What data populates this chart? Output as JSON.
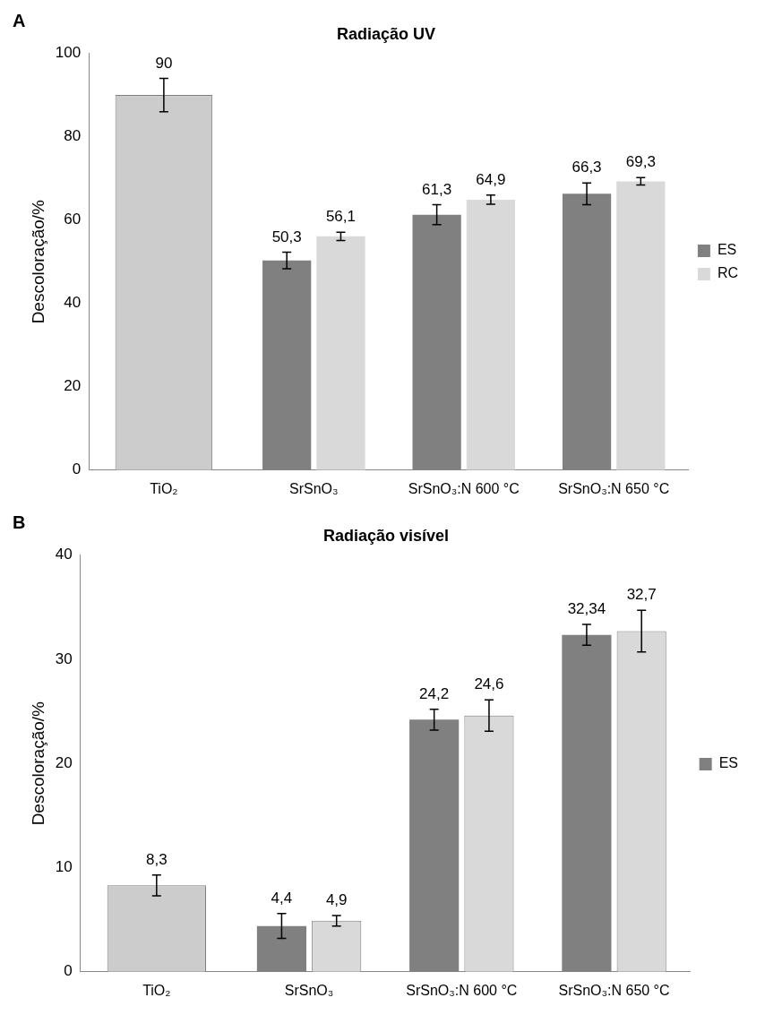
{
  "chart_data": [
    {
      "type": "bar",
      "title": "Radiação UV",
      "ylabel": "Descoloração/%",
      "annotations": [
        "A"
      ],
      "categories": [
        "TiO₂",
        "SrSnO₃",
        "SrSnO₃:N 600 °C",
        "SrSnO₃:N 650 °C"
      ],
      "ylim": [
        0,
        100
      ],
      "yticks": [
        0,
        20,
        40,
        60,
        80,
        100
      ],
      "grid": false,
      "legend": "right",
      "series": [
        {
          "color": "#cccccc",
          "values": [
            90,
            null,
            null,
            null
          ],
          "errors": [
            4,
            null,
            null,
            null
          ],
          "value_labels": [
            "90",
            null,
            null,
            null
          ]
        },
        {
          "name": "ES",
          "color": "#808080",
          "values": [
            null,
            50.3,
            61.3,
            66.3
          ],
          "errors": [
            null,
            2,
            2.4,
            2.6
          ],
          "value_labels": [
            null,
            "50,3",
            "61,3",
            "66,3"
          ]
        },
        {
          "name": "RC",
          "color": "#d9d9d9",
          "values": [
            null,
            56.1,
            64.9,
            69.3
          ],
          "errors": [
            null,
            1,
            1.1,
            0.9
          ],
          "value_labels": [
            null,
            "56,1",
            "64,9",
            "69,3"
          ]
        }
      ]
    },
    {
      "type": "bar",
      "title": "Radiação visível",
      "ylabel": "Descoloração/%",
      "annotations": [
        "B"
      ],
      "categories": [
        "TiO₂",
        "SrSnO₃",
        "SrSnO₃:N 600 °C",
        "SrSnO₃:N 650 °C"
      ],
      "ylim": [
        0,
        40
      ],
      "yticks": [
        0,
        10,
        20,
        30,
        40
      ],
      "grid": false,
      "legend": "right",
      "series": [
        {
          "color": "#cccccc",
          "values": [
            8.3,
            null,
            null,
            null
          ],
          "errors": [
            1,
            null,
            null,
            null
          ],
          "value_labels": [
            "8,3",
            null,
            null,
            null
          ]
        },
        {
          "name": "ES",
          "color": "#808080",
          "values": [
            null,
            4.4,
            24.2,
            32.34
          ],
          "errors": [
            null,
            1.2,
            1,
            1
          ],
          "value_labels": [
            null,
            "4,4",
            "24,2",
            "32,34"
          ]
        },
        {
          "color": "#d9d9d9",
          "values": [
            null,
            4.9,
            24.6,
            32.7
          ],
          "errors": [
            null,
            0.5,
            1.5,
            2
          ],
          "value_labels": [
            null,
            "4,9",
            "24,6",
            "32,7"
          ]
        }
      ]
    }
  ]
}
